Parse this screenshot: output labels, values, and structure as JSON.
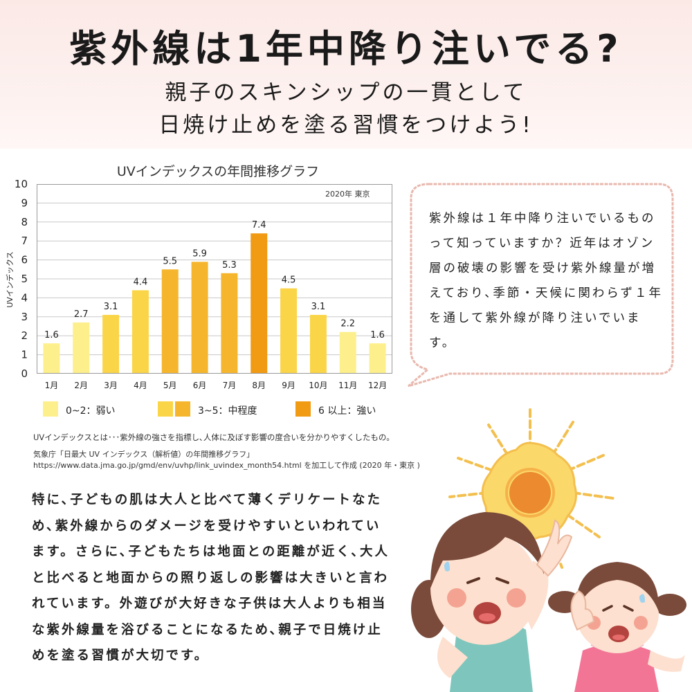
{
  "header": {
    "title": "紫外線は1年中降り注いでる?",
    "subtitle_line1": "親子のスキンシップの一貫として",
    "subtitle_line2": "日焼け止めを塗る習慣をつけよう!"
  },
  "chart_data": {
    "type": "bar",
    "title": "UVインデックスの年間推移グラフ",
    "source_tag": "2020年 東京",
    "ylabel": "UVインデックス",
    "xlabel": "",
    "categories": [
      "1月",
      "2月",
      "3月",
      "4月",
      "5月",
      "6月",
      "7月",
      "8月",
      "9月",
      "10月",
      "11月",
      "12月"
    ],
    "values": [
      1.6,
      2.7,
      3.1,
      4.4,
      5.5,
      5.9,
      5.3,
      7.4,
      4.5,
      3.1,
      2.2,
      1.6
    ],
    "data_labels": [
      "1.6",
      "2.7",
      "3.1",
      "4.4",
      "5.5",
      "5.9",
      "5.3",
      "7.4",
      "4.5",
      "3.1",
      "2.2",
      "1.6"
    ],
    "ylim": [
      0,
      10
    ],
    "yticks": [
      "0",
      "1",
      "2",
      "3",
      "4",
      "5",
      "6",
      "7",
      "8",
      "9",
      "10"
    ],
    "grid": true,
    "legend_position": "bottom",
    "legend": [
      {
        "label": "0~2：弱い",
        "colors": [
          "#fdf08c"
        ]
      },
      {
        "label": "3~5：中程度",
        "colors": [
          "#fbd548",
          "#f5b62e"
        ]
      },
      {
        "label": "6 以上：強い",
        "colors": [
          "#f19a14"
        ]
      }
    ],
    "colors": {
      "low": "#fdf08c",
      "mid_low": "#fbd548",
      "mid_high": "#f5b62e",
      "high": "#f19a14"
    }
  },
  "notes": {
    "definition": "UVインデックスとは･･･紫外線の強さを指標し､人体に及ぼす影響の度合いを分かりやすくしたもの｡",
    "source1": "気象庁「日最大 UV インデックス（解析値）の年間推移グラフ」",
    "source2": "https://www.data.jma.go.jp/gmd/env/uvhp/link_uvindex_month54.html を加工して作成 (2020 年・東京 )"
  },
  "bubble": {
    "text": "紫外線は１年中降り注いでいるものって知っていますか？近年はオゾン層の破壊の影響を受け紫外線量が増えており､季節・天候に関わらず１年を通して紫外線が降り注いでいます。"
  },
  "body": {
    "text": "特に､子どもの肌は大人と比べて薄くデリケートなため､紫外線からのダメージを受けやすいといわれています。さらに､子どもたちは地面との距離が近く､大人と比べると地面からの照り返しの影響は大きいと言われています。外遊びが大好きな子供は大人よりも相当な紫外線量を浴びることになるため､親子で日焼け止めを塗る習慣が大切です。"
  },
  "illustration": {
    "icons": [
      "sun-icon",
      "older-girl-icon",
      "younger-girl-icon"
    ],
    "colors": {
      "sun_core": "#eb8a2e",
      "sun_glow": "#fbd86a",
      "skin": "#fde0cf",
      "hair": "#7a4a3a",
      "dress_older": "#7ec6bd",
      "dress_younger": "#f37596"
    }
  },
  "colors": {
    "header_bg": "#fbe9e6",
    "bubble_border": "#e8b8ae"
  }
}
